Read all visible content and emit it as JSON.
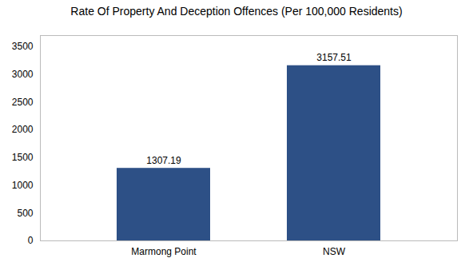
{
  "chart_data": {
    "type": "bar",
    "title": "Rate Of Property And Deception Offences (Per 100,000 Residents)",
    "categories": [
      "Marmong Point",
      "NSW"
    ],
    "values": [
      1307.19,
      3157.51
    ],
    "color": "#2d5086",
    "ylim": [
      0,
      3700
    ],
    "yticks": [
      0,
      500,
      1000,
      1500,
      2000,
      2500,
      3000,
      3500
    ],
    "grid": false,
    "data_labels": true
  }
}
